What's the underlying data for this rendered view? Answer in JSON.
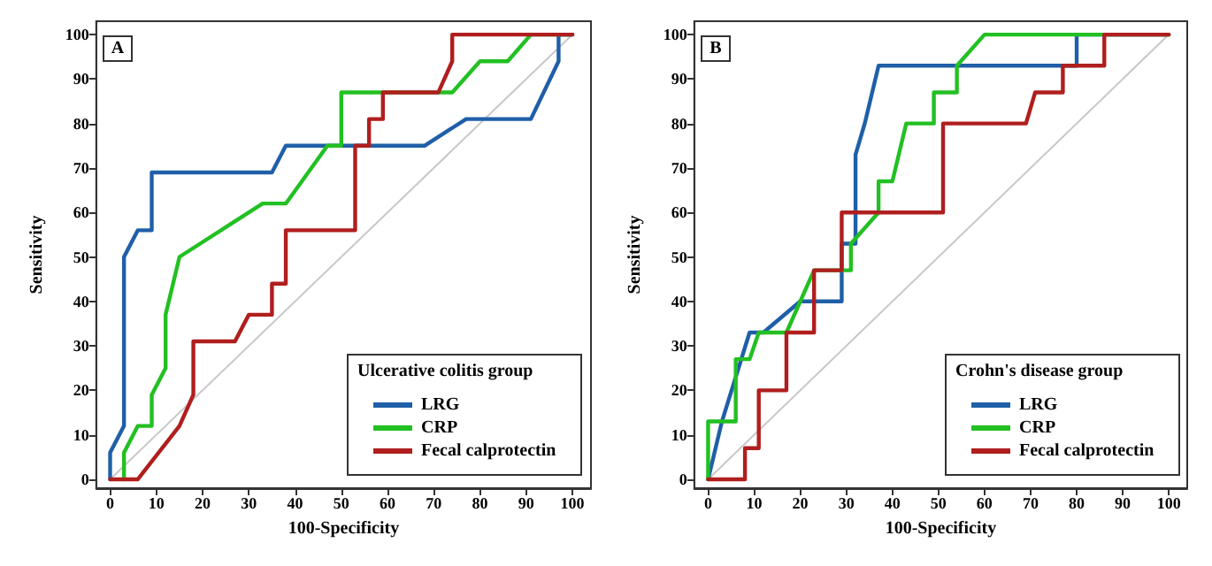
{
  "chart_data": [
    {
      "type": "line",
      "annotations": [
        "A"
      ],
      "xlabel": "100-Specificity",
      "ylabel": "Sensitivity",
      "legend_title": "Ulcerative colitis group",
      "xlim": [
        -3,
        104
      ],
      "ylim": [
        -2,
        103
      ],
      "xticks": [
        0,
        10,
        20,
        30,
        40,
        50,
        60,
        70,
        80,
        90,
        100
      ],
      "yticks": [
        0,
        10,
        20,
        30,
        40,
        50,
        60,
        70,
        80,
        90,
        100
      ],
      "grid": false,
      "legend": "bottom right",
      "marker": "none",
      "line_style": "solid",
      "series": [
        {
          "color": "#c8c8c8",
          "x": [
            0,
            100
          ],
          "values": [
            0,
            100
          ]
        },
        {
          "name": "LRG",
          "color": "#1f5fa8",
          "x": [
            0,
            0,
            3,
            3,
            6,
            9,
            9,
            35,
            38,
            68,
            77,
            91,
            97,
            97,
            100
          ],
          "values": [
            0,
            6,
            12,
            50,
            56,
            56,
            69,
            69,
            75,
            75,
            81,
            81,
            94,
            100,
            100
          ]
        },
        {
          "name": "CRP",
          "color": "#22c022",
          "x": [
            3,
            3,
            6,
            9,
            9,
            12,
            12,
            15,
            33,
            38,
            47,
            50,
            50,
            74,
            80,
            86,
            91,
            100
          ],
          "values": [
            0,
            6,
            12,
            12,
            19,
            25,
            37,
            50,
            62,
            62,
            75,
            75,
            87,
            87,
            94,
            94,
            100,
            100
          ]
        },
        {
          "name": "Fecal calprotectin",
          "color": "#b01e1e",
          "x": [
            0,
            6,
            15,
            18,
            18,
            27,
            30,
            35,
            35,
            38,
            38,
            53,
            53,
            56,
            56,
            59,
            59,
            71,
            74,
            74,
            100
          ],
          "values": [
            0,
            0,
            12,
            19,
            31,
            31,
            37,
            37,
            44,
            44,
            56,
            56,
            75,
            75,
            81,
            81,
            87,
            87,
            94,
            100,
            100
          ]
        }
      ]
    },
    {
      "type": "line",
      "annotations": [
        "B"
      ],
      "xlabel": "100-Specificity",
      "ylabel": "Sensitivity",
      "legend_title": "Crohn's disease group",
      "xlim": [
        -3,
        104
      ],
      "ylim": [
        -2,
        103
      ],
      "xticks": [
        0,
        10,
        20,
        30,
        40,
        50,
        60,
        70,
        80,
        90,
        100
      ],
      "yticks": [
        0,
        10,
        20,
        30,
        40,
        50,
        60,
        70,
        80,
        90,
        100
      ],
      "grid": false,
      "legend": "bottom right",
      "marker": "none",
      "line_style": "solid",
      "series": [
        {
          "color": "#c8c8c8",
          "x": [
            0,
            100
          ],
          "values": [
            0,
            100
          ]
        },
        {
          "name": "LRG",
          "color": "#1f5fa8",
          "x": [
            0,
            3,
            9,
            12,
            20,
            29,
            29,
            32,
            32,
            34,
            37,
            80,
            80,
            100
          ],
          "values": [
            0,
            13,
            33,
            33,
            40,
            40,
            53,
            53,
            73,
            80,
            93,
            93,
            100,
            100
          ]
        },
        {
          "name": "CRP",
          "color": "#22c022",
          "x": [
            0,
            0,
            6,
            6,
            9,
            11,
            17,
            23,
            31,
            31,
            37,
            37,
            40,
            43,
            49,
            49,
            54,
            54,
            60,
            100
          ],
          "values": [
            0,
            13,
            13,
            27,
            27,
            33,
            33,
            47,
            47,
            53,
            60,
            67,
            67,
            80,
            80,
            87,
            87,
            93,
            100,
            100
          ]
        },
        {
          "name": "Fecal calprotectin",
          "color": "#b01e1e",
          "x": [
            0,
            8,
            8,
            11,
            11,
            17,
            17,
            23,
            23,
            29,
            29,
            51,
            51,
            69,
            71,
            77,
            77,
            86,
            86,
            100
          ],
          "values": [
            0,
            0,
            7,
            7,
            20,
            20,
            33,
            33,
            47,
            47,
            60,
            60,
            80,
            80,
            87,
            87,
            93,
            93,
            100,
            100
          ]
        }
      ]
    }
  ]
}
